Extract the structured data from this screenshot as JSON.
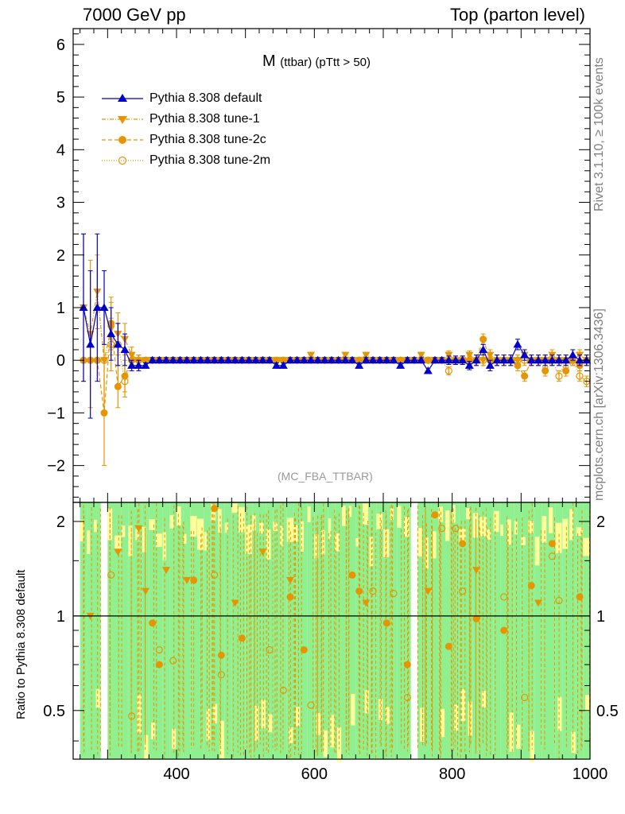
{
  "header": {
    "left": "7000 GeV pp",
    "right": "Top (parton level)"
  },
  "side_labels": {
    "rivet": "Rivet 3.1.10, ≥ 100k events",
    "mcplots": "mcplots.cern.ch [arXiv:1306.3436]"
  },
  "plot_title": {
    "main": "M",
    "sub": "(ttbar) (pTtt > 50)"
  },
  "analysis_label": "(MC_FBA_TTBAR)",
  "ratio_ylabel": "Ratio to Pythia 8.308 default",
  "colors": {
    "default": "#0000cc",
    "tunes": "#e69500",
    "band_green": "#90f090",
    "band_yellow": "#ffff99"
  },
  "chart_data": [
    {
      "type": "line",
      "panel": "main",
      "xlim": [
        250,
        1000
      ],
      "ylim": [
        -2.7,
        6.3
      ],
      "yticks": [
        -2,
        -1,
        0,
        1,
        2,
        3,
        4,
        5,
        6
      ],
      "ytick_labels": [
        "−2",
        "−1",
        "0",
        "1",
        "2",
        "3",
        "4",
        "5",
        "6"
      ],
      "bin_width": 10,
      "x": [
        265,
        275,
        285,
        295,
        305,
        315,
        325,
        335,
        345,
        355,
        365,
        375,
        385,
        395,
        405,
        415,
        425,
        435,
        445,
        455,
        465,
        475,
        485,
        495,
        505,
        515,
        525,
        535,
        545,
        555,
        565,
        575,
        585,
        595,
        605,
        615,
        625,
        635,
        645,
        655,
        665,
        675,
        685,
        695,
        705,
        715,
        725,
        735,
        745,
        755,
        765,
        775,
        785,
        795,
        805,
        815,
        825,
        835,
        845,
        855,
        865,
        875,
        885,
        895,
        905,
        915,
        925,
        935,
        945,
        955,
        965,
        975,
        985,
        995
      ],
      "series": [
        {
          "name": "Pythia 8.308 default",
          "marker": "triangle-up",
          "values": [
            1.0,
            0.3,
            1.0,
            1.0,
            0.5,
            0.3,
            0.2,
            -0.1,
            -0.1,
            -0.1,
            0.0,
            0.0,
            0.0,
            0.0,
            0.0,
            0.0,
            0.0,
            0.0,
            0.0,
            0.0,
            0.0,
            0.0,
            0.0,
            0.0,
            0.0,
            0.0,
            0.0,
            0.0,
            -0.1,
            -0.1,
            0.0,
            0.0,
            0.0,
            0.0,
            0.0,
            0.0,
            0.0,
            0.0,
            0.0,
            0.0,
            -0.1,
            0.0,
            0.0,
            0.0,
            0.0,
            0.0,
            -0.1,
            0.0,
            0.0,
            0.0,
            -0.2,
            0.0,
            0.0,
            0.0,
            0.0,
            0.0,
            -0.1,
            0.0,
            0.2,
            -0.1,
            0.0,
            0.0,
            0.0,
            0.3,
            0.1,
            0.0,
            0.0,
            0.0,
            0.0,
            0.0,
            0.0,
            0.1,
            0.0,
            0.0
          ],
          "errors": [
            1.4,
            1.4,
            1.4,
            0.7,
            0.5,
            0.4,
            0.3,
            0.1,
            0.1,
            0.05,
            0.05,
            0.05,
            0.05,
            0.05,
            0.05,
            0.05,
            0.05,
            0.05,
            0.05,
            0.05,
            0.05,
            0.05,
            0.05,
            0.05,
            0.05,
            0.05,
            0.05,
            0.05,
            0.05,
            0.05,
            0.05,
            0.05,
            0.05,
            0.05,
            0.05,
            0.05,
            0.05,
            0.05,
            0.05,
            0.05,
            0.05,
            0.05,
            0.05,
            0.05,
            0.05,
            0.05,
            0.05,
            0.05,
            0.05,
            0.05,
            0.05,
            0.05,
            0.05,
            0.08,
            0.08,
            0.08,
            0.08,
            0.1,
            0.1,
            0.1,
            0.1,
            0.1,
            0.1,
            0.1,
            0.1,
            0.1,
            0.1,
            0.1,
            0.1,
            0.1,
            0.1,
            0.1,
            0.1,
            0.1
          ]
        },
        {
          "name": "Pythia 8.308 tune-1",
          "marker": "triangle-down",
          "values": [
            1.0,
            0.5,
            1.3,
            0.0,
            0.6,
            0.5,
            0.4,
            0.1,
            0.0,
            0.0,
            0.0,
            0.0,
            0.0,
            0.0,
            0.0,
            0.0,
            0.0,
            0.0,
            0.0,
            0.0,
            0.0,
            0.0,
            0.0,
            0.0,
            0.0,
            0.0,
            0.0,
            0.0,
            0.0,
            0.0,
            0.0,
            0.0,
            0.0,
            0.1,
            0.0,
            0.0,
            0.0,
            0.0,
            0.1,
            0.0,
            0.0,
            0.1,
            0.0,
            0.0,
            0.0,
            0.0,
            0.0,
            0.0,
            0.0,
            0.1,
            0.0,
            0.0,
            0.0,
            0.1,
            0.0,
            0.0,
            0.1,
            0.0,
            0.0,
            0.1,
            0.0,
            0.0,
            0.0,
            0.0,
            0.1,
            0.0,
            0.0,
            0.0,
            0.1,
            0.0,
            0.0,
            0.0,
            0.1,
            0.0
          ],
          "errors": [
            1.4,
            1.4,
            0.7,
            1.0,
            0.5,
            0.4,
            0.3,
            0.15,
            0.1,
            0.05,
            0.05,
            0.05,
            0.05,
            0.05,
            0.05,
            0.05,
            0.05,
            0.05,
            0.05,
            0.05,
            0.05,
            0.05,
            0.05,
            0.05,
            0.05,
            0.05,
            0.05,
            0.05,
            0.05,
            0.05,
            0.05,
            0.05,
            0.05,
            0.05,
            0.05,
            0.05,
            0.05,
            0.05,
            0.05,
            0.05,
            0.05,
            0.05,
            0.05,
            0.05,
            0.05,
            0.05,
            0.05,
            0.05,
            0.05,
            0.05,
            0.05,
            0.05,
            0.05,
            0.08,
            0.08,
            0.08,
            0.08,
            0.1,
            0.1,
            0.1,
            0.1,
            0.1,
            0.1,
            0.1,
            0.1,
            0.1,
            0.1,
            0.1,
            0.1,
            0.1,
            0.1,
            0.1,
            0.1,
            0.1
          ]
        },
        {
          "name": "Pythia 8.308 tune-2c",
          "marker": "circle-filled",
          "values": [
            0.0,
            0.0,
            0.0,
            -1.0,
            0.7,
            -0.5,
            -0.3,
            0.0,
            0.0,
            0.0,
            0.0,
            0.0,
            0.0,
            0.0,
            0.0,
            0.0,
            0.0,
            0.0,
            0.0,
            0.0,
            0.0,
            0.0,
            0.0,
            0.0,
            0.0,
            0.0,
            0.0,
            0.0,
            0.0,
            0.0,
            0.0,
            0.0,
            0.0,
            0.0,
            0.0,
            0.0,
            0.0,
            0.0,
            0.0,
            0.0,
            0.0,
            0.0,
            0.0,
            0.0,
            0.0,
            0.0,
            0.0,
            0.0,
            0.0,
            0.0,
            0.0,
            0.0,
            0.0,
            0.0,
            0.0,
            0.0,
            0.0,
            0.0,
            0.4,
            0.0,
            0.0,
            0.0,
            0.0,
            -0.1,
            -0.3,
            0.0,
            0.0,
            -0.2,
            0.0,
            0.0,
            -0.2,
            0.0,
            -0.1,
            0.0
          ],
          "errors": [
            0.0,
            0.0,
            0.0,
            1.0,
            0.5,
            0.4,
            0.3,
            0.1,
            0.1,
            0.05,
            0.05,
            0.05,
            0.05,
            0.05,
            0.05,
            0.05,
            0.05,
            0.05,
            0.05,
            0.05,
            0.05,
            0.05,
            0.05,
            0.05,
            0.05,
            0.05,
            0.05,
            0.05,
            0.05,
            0.05,
            0.05,
            0.05,
            0.05,
            0.05,
            0.05,
            0.05,
            0.05,
            0.05,
            0.05,
            0.05,
            0.05,
            0.05,
            0.05,
            0.05,
            0.05,
            0.05,
            0.05,
            0.05,
            0.05,
            0.05,
            0.05,
            0.05,
            0.05,
            0.08,
            0.08,
            0.08,
            0.08,
            0.1,
            0.1,
            0.1,
            0.1,
            0.1,
            0.1,
            0.1,
            0.1,
            0.1,
            0.1,
            0.1,
            0.1,
            0.1,
            0.1,
            0.1,
            0.1,
            0.1
          ]
        },
        {
          "name": "Pythia 8.308 tune-2m",
          "marker": "circle-open",
          "values": [
            0.0,
            0.0,
            0.0,
            0.0,
            0.3,
            0.3,
            -0.4,
            0.0,
            0.0,
            0.0,
            0.0,
            0.0,
            0.0,
            0.0,
            0.0,
            0.0,
            0.0,
            0.0,
            0.0,
            0.0,
            0.0,
            0.0,
            0.0,
            0.0,
            0.0,
            0.0,
            0.0,
            0.0,
            0.0,
            0.0,
            0.0,
            0.0,
            0.0,
            0.0,
            0.0,
            0.0,
            0.0,
            0.0,
            0.0,
            0.0,
            0.0,
            0.0,
            0.0,
            0.0,
            0.0,
            0.0,
            0.0,
            0.0,
            0.0,
            0.0,
            0.0,
            0.0,
            0.0,
            -0.2,
            0.0,
            0.0,
            0.0,
            0.0,
            0.0,
            0.0,
            0.0,
            0.0,
            0.0,
            0.0,
            0.0,
            0.0,
            0.0,
            0.0,
            0.0,
            -0.3,
            0.0,
            0.0,
            -0.3,
            -0.4
          ],
          "errors": [
            0.0,
            0.0,
            0.0,
            0.0,
            0.5,
            0.4,
            0.3,
            0.1,
            0.1,
            0.05,
            0.05,
            0.05,
            0.05,
            0.05,
            0.05,
            0.05,
            0.05,
            0.05,
            0.05,
            0.05,
            0.05,
            0.05,
            0.05,
            0.05,
            0.05,
            0.05,
            0.05,
            0.05,
            0.05,
            0.05,
            0.05,
            0.05,
            0.05,
            0.05,
            0.05,
            0.05,
            0.05,
            0.05,
            0.05,
            0.05,
            0.05,
            0.05,
            0.05,
            0.05,
            0.05,
            0.05,
            0.05,
            0.05,
            0.05,
            0.05,
            0.05,
            0.05,
            0.05,
            0.08,
            0.08,
            0.08,
            0.08,
            0.1,
            0.1,
            0.1,
            0.1,
            0.1,
            0.1,
            0.1,
            0.1,
            0.1,
            0.1,
            0.1,
            0.1,
            0.1,
            0.1,
            0.1,
            0.1,
            0.1
          ]
        }
      ]
    },
    {
      "type": "scatter",
      "panel": "ratio",
      "ylabel": "Ratio to Pythia 8.308 default",
      "xlim": [
        250,
        1000
      ],
      "ylim": [
        0.35,
        2.3
      ],
      "yscale": "log",
      "yticks": [
        0.5,
        1,
        2
      ],
      "ytick_labels": [
        "0.5",
        "1",
        "2"
      ],
      "xticks": [
        400,
        600,
        800,
        1000
      ],
      "xtick_labels": [
        "400",
        "600",
        "800",
        "1000"
      ],
      "reference_line": 1,
      "band_range": [
        260,
        1000
      ],
      "gaps": [
        [
          290,
          305
        ],
        [
          742,
          752
        ]
      ],
      "series": [
        {
          "name": "Pythia 8.308 tune-1",
          "marker": "triangle-down",
          "x": [
            275,
            315,
            345,
            355,
            385,
            415,
            485,
            525,
            565,
            675,
            765,
            835,
            925
          ],
          "values": [
            1.0,
            1.6,
            1.9,
            1.2,
            1.4,
            1.3,
            1.1,
            1.6,
            1.3,
            1.1,
            1.2,
            1.4,
            1.1
          ]
        },
        {
          "name": "Pythia 8.308 tune-2c",
          "marker": "circle-filled",
          "x": [
            365,
            375,
            425,
            455,
            465,
            495,
            565,
            585,
            655,
            665,
            705,
            735,
            775,
            795,
            815,
            835,
            875,
            915,
            945,
            985
          ],
          "values": [
            0.95,
            0.7,
            1.3,
            2.2,
            0.75,
            0.85,
            1.15,
            0.78,
            1.35,
            1.2,
            0.95,
            0.7,
            2.1,
            0.8,
            1.7,
            0.98,
            0.9,
            1.25,
            1.7,
            1.15
          ]
        },
        {
          "name": "Pythia 8.308 tune-2m",
          "marker": "circle-open",
          "x": [
            305,
            335,
            375,
            395,
            455,
            465,
            535,
            555,
            595,
            685,
            715,
            735,
            785,
            805,
            815,
            875,
            905,
            945,
            955
          ],
          "values": [
            1.35,
            0.48,
            0.78,
            0.72,
            1.35,
            0.65,
            0.78,
            0.58,
            0.52,
            1.2,
            1.18,
            0.55,
            1.9,
            1.9,
            1.2,
            1.15,
            0.55,
            1.55,
            1.12
          ]
        }
      ]
    }
  ]
}
